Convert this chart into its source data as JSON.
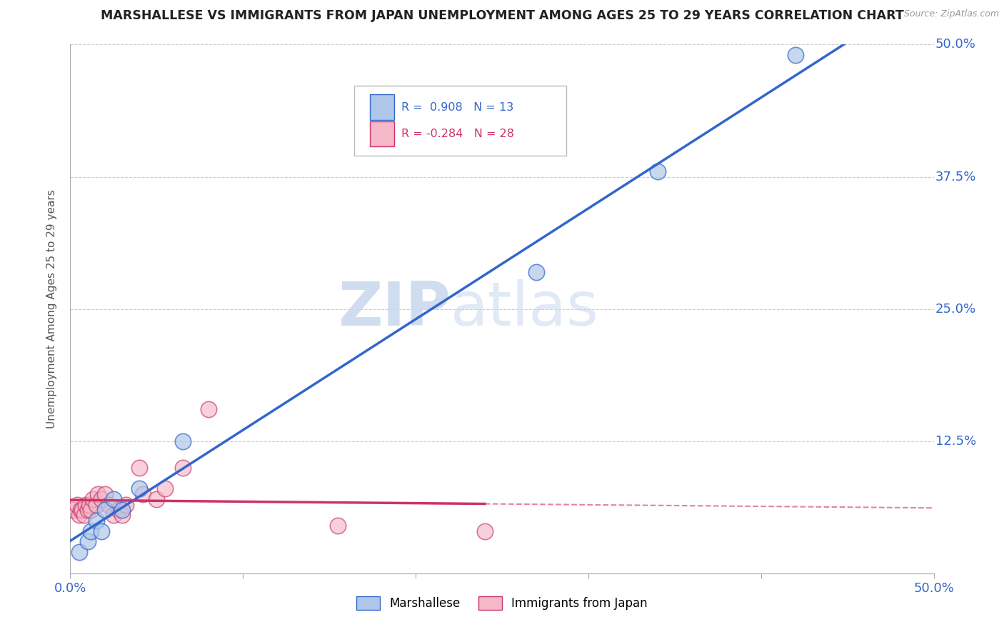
{
  "title": "MARSHALLESE VS IMMIGRANTS FROM JAPAN UNEMPLOYMENT AMONG AGES 25 TO 29 YEARS CORRELATION CHART",
  "source": "Source: ZipAtlas.com",
  "ylabel": "Unemployment Among Ages 25 to 29 years",
  "xlabel": "",
  "xlim": [
    0.0,
    0.5
  ],
  "ylim": [
    0.0,
    0.5
  ],
  "xticks": [
    0.0,
    0.1,
    0.2,
    0.3,
    0.4,
    0.5
  ],
  "xtick_labels": [
    "0.0%",
    "",
    "",
    "",
    "",
    "50.0%"
  ],
  "yticks": [
    0.0,
    0.125,
    0.25,
    0.375,
    0.5
  ],
  "ytick_labels": [
    "",
    "12.5%",
    "25.0%",
    "37.5%",
    "50.0%"
  ],
  "marshallese_R": 0.908,
  "marshallese_N": 13,
  "japan_R": -0.284,
  "japan_N": 28,
  "marshallese_color": "#aec6e8",
  "japan_color": "#f4b8c8",
  "blue_line_color": "#3366cc",
  "pink_line_color": "#cc3366",
  "watermark_zip": "ZIP",
  "watermark_atlas": "atlas",
  "background_color": "#ffffff",
  "grid_color": "#cccccc",
  "marshallese_x": [
    0.005,
    0.01,
    0.012,
    0.015,
    0.018,
    0.02,
    0.025,
    0.03,
    0.04,
    0.065,
    0.27,
    0.34,
    0.42
  ],
  "marshallese_y": [
    0.02,
    0.03,
    0.04,
    0.05,
    0.04,
    0.06,
    0.07,
    0.06,
    0.08,
    0.125,
    0.285,
    0.38,
    0.49
  ],
  "japan_x": [
    0.002,
    0.004,
    0.005,
    0.006,
    0.007,
    0.008,
    0.009,
    0.01,
    0.011,
    0.012,
    0.013,
    0.015,
    0.016,
    0.018,
    0.02,
    0.022,
    0.025,
    0.028,
    0.03,
    0.032,
    0.04,
    0.042,
    0.05,
    0.055,
    0.065,
    0.08,
    0.155,
    0.24
  ],
  "japan_y": [
    0.06,
    0.065,
    0.055,
    0.06,
    0.06,
    0.055,
    0.065,
    0.06,
    0.065,
    0.06,
    0.07,
    0.065,
    0.075,
    0.07,
    0.075,
    0.065,
    0.055,
    0.06,
    0.055,
    0.065,
    0.1,
    0.075,
    0.07,
    0.08,
    0.1,
    0.155,
    0.045,
    0.04
  ]
}
